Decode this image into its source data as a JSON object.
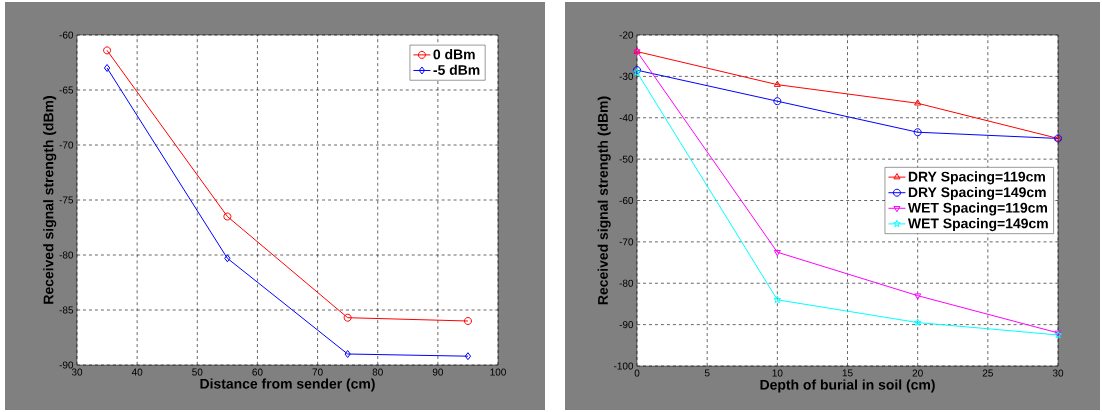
{
  "chart_data": [
    {
      "type": "line",
      "xlabel": "Distance from sender (cm)",
      "ylabel": "Received signal strength (dBm)",
      "x": [
        35,
        55,
        75,
        95
      ],
      "series": [
        {
          "name": "0 dBm",
          "color": "#ff0000",
          "marker": "circle",
          "values": [
            -61.4,
            -76.5,
            -85.7,
            -86.0
          ]
        },
        {
          "name": "-5 dBm",
          "color": "#0000ff",
          "marker": "diamond",
          "values": [
            -63.0,
            -80.3,
            -89.0,
            -89.2
          ]
        }
      ],
      "xlim": [
        30,
        100
      ],
      "ylim": [
        -90,
        -60
      ],
      "xticks": [
        30,
        40,
        50,
        60,
        70,
        80,
        90,
        100
      ],
      "yticks": [
        -90,
        -85,
        -80,
        -75,
        -70,
        -65,
        -60
      ],
      "grid": true,
      "legend": "top right"
    },
    {
      "type": "line",
      "xlabel": "Depth of burial in soil (cm)",
      "ylabel": "Received signal strength (dBm)",
      "x": [
        0,
        10,
        20,
        30
      ],
      "series": [
        {
          "name": "DRY Spacing=119cm",
          "color": "#ff0000",
          "marker": "triangle",
          "values": [
            -24,
            -32,
            -36.5,
            -45
          ]
        },
        {
          "name": "DRY Spacing=149cm",
          "color": "#0000ff",
          "marker": "circle",
          "values": [
            -28.5,
            -36,
            -43.5,
            -45
          ]
        },
        {
          "name": "WET Spacing=119cm",
          "color": "#ff00ff",
          "marker": "triangle-down",
          "values": [
            -24,
            -72.5,
            -83,
            -92
          ]
        },
        {
          "name": "WET Spacing=149cm",
          "color": "#00ffff",
          "marker": "star",
          "values": [
            -29,
            -84,
            -89.5,
            -92.5
          ]
        }
      ],
      "xlim": [
        0,
        30
      ],
      "ylim": [
        -100,
        -20
      ],
      "xticks": [
        0,
        5,
        10,
        15,
        20,
        25,
        30
      ],
      "yticks": [
        -100,
        -90,
        -80,
        -70,
        -60,
        -50,
        -40,
        -30,
        -20
      ],
      "grid": true,
      "legend": "right"
    }
  ]
}
